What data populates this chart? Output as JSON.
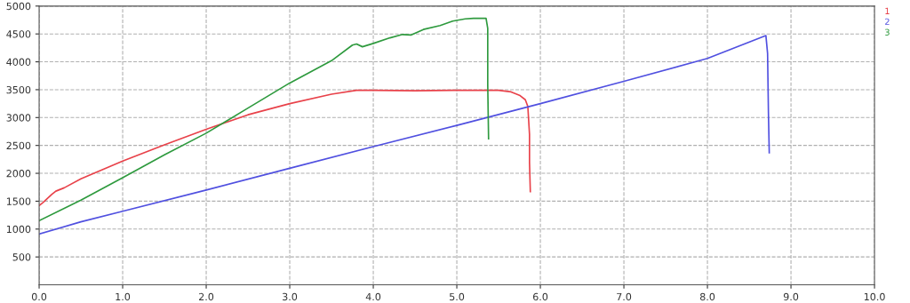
{
  "chart_data": {
    "type": "line",
    "xlim": [
      0,
      10
    ],
    "ylim": [
      0,
      5000
    ],
    "xticks": [
      {
        "value": 0,
        "label": "0.0"
      },
      {
        "value": 1,
        "label": "1.0"
      },
      {
        "value": 2,
        "label": "2.0"
      },
      {
        "value": 3,
        "label": "3.0"
      },
      {
        "value": 4,
        "label": "4.0"
      },
      {
        "value": 5,
        "label": "5.0"
      },
      {
        "value": 6,
        "label": "6.0"
      },
      {
        "value": 7,
        "label": "7.0"
      },
      {
        "value": 8,
        "label": "8.0"
      },
      {
        "value": 9,
        "label": "9.0"
      },
      {
        "value": 10,
        "label": "10.0"
      }
    ],
    "yticks": [
      500,
      1000,
      1500,
      2000,
      2500,
      3000,
      3500,
      4000,
      4500,
      5000
    ],
    "grid": true,
    "legend": "top right",
    "series": [
      {
        "name": "1",
        "color": "#e8424a",
        "x": [
          0,
          0.05,
          0.15,
          0.2,
          0.3,
          0.5,
          1.0,
          1.5,
          2.0,
          2.5,
          3.0,
          3.5,
          3.8,
          4.0,
          4.5,
          5.0,
          5.5,
          5.65,
          5.75,
          5.82,
          5.85,
          5.87,
          5.87,
          5.88
        ],
        "values": [
          1420,
          1480,
          1620,
          1680,
          1740,
          1900,
          2220,
          2510,
          2790,
          3050,
          3250,
          3420,
          3490,
          3490,
          3480,
          3490,
          3490,
          3460,
          3400,
          3320,
          3200,
          2700,
          2200,
          1670
        ]
      },
      {
        "name": "2",
        "color": "#5050e0",
        "x": [
          0,
          0.5,
          1.0,
          2.0,
          3.0,
          4.0,
          5.0,
          6.0,
          7.0,
          8.0,
          8.7,
          8.72,
          8.73,
          8.74
        ],
        "values": [
          910,
          1130,
          1320,
          1700,
          2090,
          2480,
          2860,
          3250,
          3650,
          4060,
          4470,
          4150,
          3100,
          2370
        ]
      },
      {
        "name": "3",
        "color": "#2e9a3e",
        "x": [
          0,
          0.5,
          1.0,
          1.5,
          2.0,
          2.5,
          3.0,
          3.5,
          3.75,
          3.8,
          3.87,
          4.0,
          4.2,
          4.35,
          4.45,
          4.6,
          4.8,
          4.95,
          5.1,
          5.2,
          5.35,
          5.37,
          5.37,
          5.37,
          5.38
        ],
        "values": [
          1150,
          1520,
          1920,
          2330,
          2720,
          3170,
          3620,
          4020,
          4300,
          4320,
          4270,
          4330,
          4430,
          4490,
          4480,
          4580,
          4650,
          4730,
          4770,
          4780,
          4780,
          4600,
          4300,
          3600,
          2620
        ]
      }
    ]
  }
}
